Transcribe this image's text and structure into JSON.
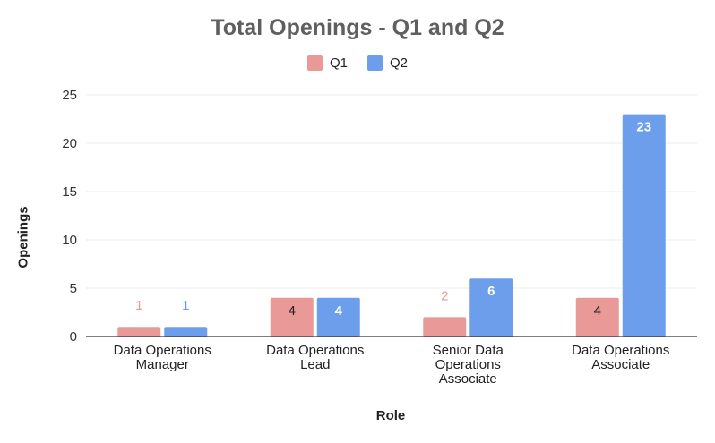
{
  "chart_data": {
    "type": "bar",
    "title": "Total Openings - Q1 and Q2",
    "xlabel": "Role",
    "ylabel": "Openings",
    "categories": [
      [
        "Data Operations",
        "Manager"
      ],
      [
        "Data Operations",
        "Lead"
      ],
      [
        "Senior Data",
        "Operations",
        "Associate"
      ],
      [
        "Data Operations",
        "Associate"
      ]
    ],
    "series": [
      {
        "name": "Q1",
        "color": "#ea9999",
        "values": [
          1,
          4,
          2,
          4
        ]
      },
      {
        "name": "Q2",
        "color": "#6d9eeb",
        "values": [
          1,
          4,
          6,
          23
        ]
      }
    ],
    "ylim": [
      0,
      25
    ],
    "yticks": [
      0,
      5,
      10,
      15,
      20,
      25
    ],
    "grid": true,
    "legend_position": "top"
  }
}
